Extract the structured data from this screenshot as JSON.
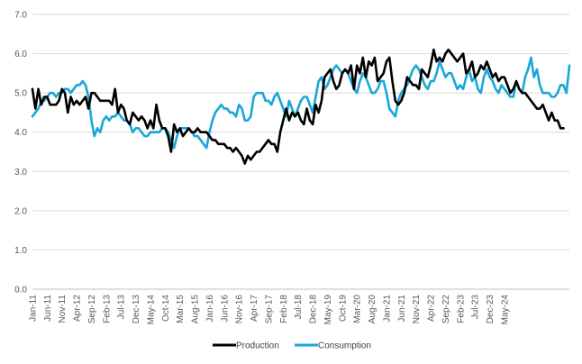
{
  "colors": {
    "production": "#000000",
    "consumption": "#1aa7d8",
    "grid": "#d9d9d9",
    "axis": "#bfbfbf"
  },
  "chart_data": {
    "type": "line",
    "title": "",
    "xlabel": "",
    "ylabel": "",
    "ylim": [
      0,
      7
    ],
    "y_ticks": [
      "0.0",
      "1.0",
      "2.0",
      "3.0",
      "4.0",
      "5.0",
      "6.0",
      "7.0"
    ],
    "x_tick_labels": [
      "Jan-11",
      "Jun-11",
      "Nov-11",
      "Apr-12",
      "Sep-12",
      "Feb-13",
      "Jul-13",
      "Dec-13",
      "May-14",
      "Oct-14",
      "Mar-15",
      "Aug-15",
      "Jan-16",
      "Jun-16",
      "Nov-16",
      "Apr-17",
      "Sep-17",
      "Feb-18",
      "Jul-18",
      "Dec-18",
      "May-19",
      "Oct-19",
      "Mar-20",
      "Aug-20",
      "Jan-21",
      "Jun-21",
      "Nov-21",
      "Apr-22",
      "Sep-22",
      "Feb-23",
      "Jul-23",
      "Dec-23",
      "May-24"
    ],
    "grid": "horizontal",
    "legend_position": "bottom",
    "x_start": "Jan-11",
    "series": [
      {
        "name": "Production",
        "values": [
          5.1,
          4.6,
          5.1,
          4.7,
          4.9,
          4.9,
          4.7,
          4.7,
          4.7,
          4.8,
          5.1,
          5.0,
          4.5,
          4.9,
          4.7,
          4.8,
          4.7,
          4.8,
          4.9,
          4.6,
          5.0,
          5.0,
          4.9,
          4.8,
          4.8,
          4.8,
          4.8,
          4.7,
          5.1,
          4.5,
          4.7,
          4.6,
          4.3,
          4.2,
          4.5,
          4.4,
          4.3,
          4.4,
          4.3,
          4.1,
          4.3,
          4.1,
          4.7,
          4.3,
          4.1,
          4.1,
          3.9,
          3.5,
          4.2,
          4.0,
          4.1,
          3.9,
          4.0,
          4.1,
          4.0,
          4.0,
          4.1,
          4.0,
          4.0,
          4.0,
          3.9,
          3.8,
          3.8,
          3.7,
          3.7,
          3.7,
          3.6,
          3.6,
          3.5,
          3.6,
          3.5,
          3.4,
          3.2,
          3.4,
          3.3,
          3.4,
          3.5,
          3.5,
          3.6,
          3.7,
          3.8,
          3.7,
          3.7,
          3.5,
          4.0,
          4.3,
          4.6,
          4.3,
          4.5,
          4.4,
          4.5,
          4.3,
          4.2,
          4.6,
          4.3,
          4.2,
          4.7,
          4.5,
          4.8,
          5.4,
          5.5,
          5.6,
          5.3,
          5.1,
          5.2,
          5.5,
          5.6,
          5.5,
          5.7,
          5.1,
          5.7,
          5.5,
          5.9,
          5.4,
          5.8,
          5.7,
          5.9,
          5.3,
          5.4,
          5.5,
          5.8,
          5.9,
          5.3,
          4.8,
          4.7,
          4.8,
          5.0,
          5.4,
          5.3,
          5.2,
          5.2,
          5.1,
          5.6,
          5.5,
          5.4,
          5.7,
          6.1,
          5.8,
          5.9,
          5.8,
          6.0,
          6.1,
          6.0,
          5.9,
          5.8,
          5.9,
          6.0,
          5.5,
          5.6,
          5.8,
          5.4,
          5.5,
          5.7,
          5.6,
          5.8,
          5.6,
          5.4,
          5.5,
          5.3,
          5.4,
          5.4,
          5.2,
          5.0,
          5.1,
          5.3,
          5.1,
          5.0,
          5.0,
          4.9,
          4.8,
          4.7,
          4.6,
          4.6,
          4.7,
          4.5,
          4.3,
          4.5,
          4.3,
          4.3,
          4.1,
          4.1
        ]
      },
      {
        "name": "Consumption",
        "values": [
          4.4,
          4.5,
          4.6,
          4.8,
          4.8,
          4.9,
          5.0,
          5.0,
          4.9,
          5.0,
          5.0,
          5.1,
          5.1,
          5.0,
          5.1,
          5.2,
          5.2,
          5.3,
          5.2,
          4.9,
          4.3,
          3.9,
          4.1,
          4.0,
          4.3,
          4.4,
          4.3,
          4.4,
          4.4,
          4.5,
          4.4,
          4.3,
          4.3,
          4.2,
          4.0,
          4.1,
          4.1,
          4.0,
          3.9,
          3.9,
          4.0,
          4.0,
          4.0,
          4.0,
          4.1,
          4.1,
          4.0,
          3.8,
          3.6,
          3.9,
          4.1,
          4.1,
          4.1,
          4.1,
          4.0,
          3.9,
          3.9,
          3.8,
          3.7,
          3.6,
          4.0,
          4.3,
          4.5,
          4.6,
          4.7,
          4.6,
          4.6,
          4.5,
          4.5,
          4.4,
          4.7,
          4.6,
          4.3,
          4.3,
          4.4,
          4.9,
          5.0,
          5.0,
          5.0,
          4.8,
          4.8,
          4.7,
          4.9,
          5.0,
          4.8,
          4.6,
          4.4,
          4.8,
          4.6,
          4.4,
          4.6,
          4.8,
          4.9,
          4.9,
          4.7,
          4.5,
          4.9,
          5.3,
          5.4,
          5.1,
          5.2,
          5.4,
          5.6,
          5.7,
          5.6,
          5.5,
          5.6,
          5.5,
          5.3,
          5.1,
          5.0,
          5.3,
          5.5,
          5.4,
          5.2,
          5.0,
          5.0,
          5.1,
          5.3,
          5.3,
          5.0,
          4.6,
          4.5,
          4.4,
          4.8,
          5.0,
          5.1,
          5.2,
          5.4,
          5.6,
          5.7,
          5.6,
          5.4,
          5.2,
          5.1,
          5.3,
          5.3,
          5.5,
          5.8,
          5.6,
          5.4,
          5.5,
          5.5,
          5.3,
          5.1,
          5.2,
          5.1,
          5.4,
          5.6,
          5.3,
          5.4,
          5.1,
          5.0,
          5.4,
          5.6,
          5.4,
          5.3,
          5.1,
          5.0,
          5.2,
          5.1,
          5.0,
          4.9,
          4.9,
          5.3,
          5.1,
          5.0,
          5.4,
          5.6,
          5.9,
          5.4,
          5.6,
          5.2,
          5.0,
          5.0,
          5.0,
          4.9,
          4.9,
          5.0,
          5.2,
          5.2,
          5.0,
          5.7
        ]
      }
    ]
  }
}
